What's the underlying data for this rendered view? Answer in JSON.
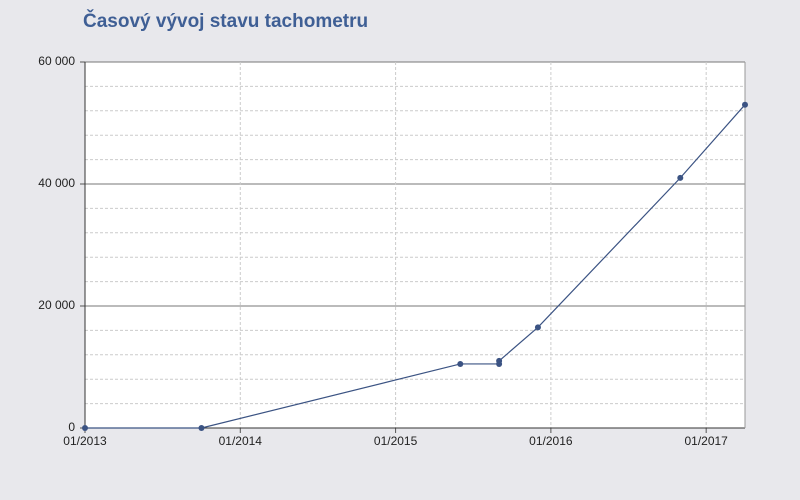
{
  "chart_data": {
    "type": "line",
    "title": "Časový vývoj stavu tachometru",
    "x": [
      "2013-01",
      "2013-10",
      "2015-06",
      "2015-09",
      "2015-09",
      "2015-12",
      "2016-11",
      "2017-04"
    ],
    "series": [
      {
        "color": "#3b5383",
        "values": [
          0,
          0,
          10500,
          10500,
          11000,
          16500,
          41000,
          53000
        ]
      }
    ],
    "xlim": [
      "2013-01",
      "2017-04"
    ],
    "xticks": [
      {
        "value": "2013-01",
        "label": "01/2013"
      },
      {
        "value": "2014-01",
        "label": "01/2014"
      },
      {
        "value": "2015-01",
        "label": "01/2015"
      },
      {
        "value": "2016-01",
        "label": "01/2016"
      },
      {
        "value": "2017-01",
        "label": "01/2017"
      }
    ],
    "ylim": [
      0,
      60000
    ],
    "yticks": [
      0,
      {
        "value": 20000,
        "label": "20 000"
      },
      {
        "value": 40000,
        "label": "40 000"
      },
      {
        "value": 60000,
        "label": "60 000"
      }
    ],
    "minor_yticks": [
      4000,
      8000,
      12000,
      16000,
      24000,
      28000,
      32000,
      36000,
      44000,
      48000,
      52000,
      56000
    ],
    "grid": true
  }
}
